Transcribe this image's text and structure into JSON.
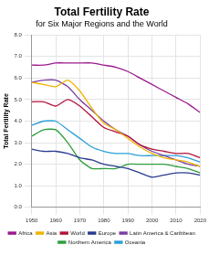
{
  "chart_data": {
    "type": "line",
    "title": "Total Fertility Rate",
    "subtitle": "for Six Major Regions and the World",
    "y_label": "Total Fertility Rate",
    "x": [
      1950,
      1955,
      1960,
      1965,
      1970,
      1975,
      1980,
      1985,
      1990,
      1995,
      2000,
      2005,
      2010,
      2015,
      2020
    ],
    "series": [
      {
        "name": "Africa",
        "color": "#9b1b8e",
        "values": [
          6.6,
          6.6,
          6.7,
          6.7,
          6.7,
          6.7,
          6.6,
          6.5,
          6.3,
          6.0,
          5.7,
          5.4,
          5.1,
          4.8,
          4.4
        ]
      },
      {
        "name": "Asia",
        "color": "#f0b400",
        "values": [
          5.8,
          5.7,
          5.6,
          5.9,
          5.4,
          4.6,
          3.9,
          3.6,
          3.2,
          2.8,
          2.5,
          2.3,
          2.2,
          2.1,
          1.9
        ]
      },
      {
        "name": "World",
        "color": "#b3123c",
        "values": [
          4.9,
          4.9,
          4.7,
          5.0,
          4.7,
          4.2,
          3.7,
          3.5,
          3.3,
          2.9,
          2.7,
          2.6,
          2.5,
          2.5,
          2.3
        ]
      },
      {
        "name": "Europe",
        "color": "#2a3d8f",
        "values": [
          2.7,
          2.6,
          2.6,
          2.5,
          2.3,
          2.2,
          2.0,
          1.9,
          1.8,
          1.6,
          1.4,
          1.5,
          1.6,
          1.6,
          1.5
        ]
      },
      {
        "name": "Latin America & Caribbean",
        "color": "#7b3fa0",
        "values": [
          5.8,
          5.9,
          5.9,
          5.6,
          5.0,
          4.5,
          4.0,
          3.6,
          3.3,
          2.9,
          2.6,
          2.4,
          2.2,
          2.0,
          1.9
        ]
      },
      {
        "name": "Northern America",
        "color": "#2e9e3e",
        "values": [
          3.3,
          3.6,
          3.6,
          3.0,
          2.2,
          1.8,
          1.8,
          1.8,
          2.0,
          2.0,
          2.0,
          2.0,
          1.9,
          1.8,
          1.6
        ]
      },
      {
        "name": "Oceania",
        "color": "#2aa0d8",
        "values": [
          3.8,
          4.0,
          4.0,
          3.6,
          3.2,
          2.8,
          2.6,
          2.5,
          2.5,
          2.4,
          2.4,
          2.4,
          2.4,
          2.3,
          2.1
        ]
      }
    ],
    "xlim": [
      1950,
      2020
    ],
    "xticks": [
      1950,
      1960,
      1970,
      1980,
      1990,
      2000,
      2010,
      2020
    ],
    "ylim": [
      0,
      8
    ],
    "yticks": [
      {
        "value": 0,
        "label": "0.0"
      },
      {
        "value": 1,
        "label": "1.0"
      },
      {
        "value": 2,
        "label": "2.0"
      },
      {
        "value": 3,
        "label": "3.0"
      },
      {
        "value": 4,
        "label": "4.0"
      },
      {
        "value": 5,
        "label": "5.0"
      },
      {
        "value": 6,
        "label": "6.0"
      },
      {
        "value": 7,
        "label": "7.0"
      },
      {
        "value": 8,
        "label": "8.0"
      }
    ],
    "grid": true,
    "legend": "bottom"
  }
}
